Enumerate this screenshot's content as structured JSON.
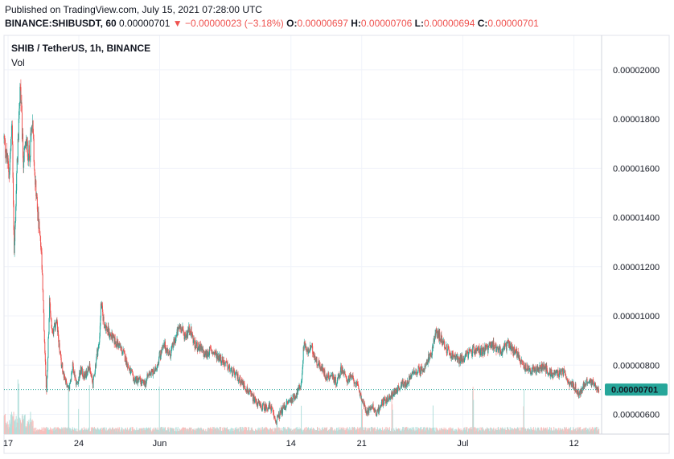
{
  "header": {
    "published": "Published on TradingView.com, July 15, 2021 07:28:00 UTC",
    "symbol": "BINANCE:SHIBUSDT, 60",
    "last": "0.00000701",
    "arrow": "▼",
    "change": "−0.00000023 (−3.18%)",
    "ohlc": [
      {
        "key": "O:",
        "value": "0.00000697"
      },
      {
        "key": "H:",
        "value": "0.00000706"
      },
      {
        "key": "L:",
        "value": "0.00000694"
      },
      {
        "key": "C:",
        "value": "0.00000701"
      }
    ]
  },
  "legend": {
    "title": "SHIB / TetherUS, 1h, BINANCE",
    "vol": "Vol"
  },
  "price_label": "0.00000701",
  "colors": {
    "up": "#26a69a",
    "down": "#ef5350",
    "vol_up": "#b2dfdb",
    "vol_down": "#f7bfbd",
    "grid": "#f0f3fa",
    "label_bg": "#26a69a"
  },
  "chart_data": {
    "type": "candlestick",
    "y_ticks": [
      "0.00002000",
      "0.00001800",
      "0.00001600",
      "0.00001400",
      "0.00001200",
      "0.00001000",
      "0.00000800",
      "0.00000600"
    ],
    "ylim": [
      5.2e-06,
      2.14e-05
    ],
    "x_ticks": [
      "17",
      "24",
      "Jun",
      "14",
      "21",
      "Jul",
      "12"
    ],
    "x_tick_days": [
      0,
      7,
      15,
      28,
      35,
      45,
      56
    ],
    "x_range_days": [
      -0.4,
      58.5
    ],
    "last_price": 7.01e-06,
    "close_path": [
      [
        -0.4,
        1.72
      ],
      [
        0.1,
        1.58
      ],
      [
        0.4,
        1.78
      ],
      [
        0.6,
        1.25
      ],
      [
        0.9,
        1.62
      ],
      [
        1.2,
        1.95
      ],
      [
        1.5,
        1.63
      ],
      [
        1.8,
        1.7
      ],
      [
        2.1,
        1.65
      ],
      [
        2.4,
        1.78
      ],
      [
        2.7,
        1.55
      ],
      [
        3.0,
        1.38
      ],
      [
        3.3,
        1.25
      ],
      [
        3.6,
        0.9
      ],
      [
        3.8,
        0.68
      ],
      [
        4.1,
        1.05
      ],
      [
        4.4,
        0.92
      ],
      [
        4.8,
        0.98
      ],
      [
        5.2,
        0.82
      ],
      [
        5.6,
        0.75
      ],
      [
        6.0,
        0.7
      ],
      [
        6.4,
        0.8
      ],
      [
        6.8,
        0.72
      ],
      [
        7.2,
        0.78
      ],
      [
        7.6,
        0.75
      ],
      [
        8.0,
        0.8
      ],
      [
        8.4,
        0.72
      ],
      [
        8.8,
        0.85
      ],
      [
        9.0,
        0.88
      ],
      [
        9.2,
        1.05
      ],
      [
        9.5,
        0.97
      ],
      [
        10.0,
        0.93
      ],
      [
        10.5,
        0.9
      ],
      [
        11.0,
        0.88
      ],
      [
        11.5,
        0.84
      ],
      [
        12.0,
        0.78
      ],
      [
        12.5,
        0.74
      ],
      [
        13.0,
        0.74
      ],
      [
        13.5,
        0.72
      ],
      [
        14.0,
        0.77
      ],
      [
        14.5,
        0.77
      ],
      [
        15.0,
        0.84
      ],
      [
        15.5,
        0.88
      ],
      [
        16.0,
        0.84
      ],
      [
        16.5,
        0.9
      ],
      [
        17.0,
        0.96
      ],
      [
        17.5,
        0.92
      ],
      [
        18.0,
        0.95
      ],
      [
        18.5,
        0.88
      ],
      [
        19.0,
        0.87
      ],
      [
        19.5,
        0.84
      ],
      [
        20.0,
        0.86
      ],
      [
        21.0,
        0.83
      ],
      [
        22.0,
        0.78
      ],
      [
        23.0,
        0.74
      ],
      [
        24.0,
        0.68
      ],
      [
        25.0,
        0.63
      ],
      [
        26.0,
        0.63
      ],
      [
        26.5,
        0.57
      ],
      [
        27.0,
        0.61
      ],
      [
        27.5,
        0.64
      ],
      [
        28.0,
        0.66
      ],
      [
        28.5,
        0.68
      ],
      [
        29.0,
        0.72
      ],
      [
        29.3,
        0.9
      ],
      [
        29.6,
        0.85
      ],
      [
        30.0,
        0.87
      ],
      [
        30.5,
        0.82
      ],
      [
        31.0,
        0.79
      ],
      [
        31.5,
        0.75
      ],
      [
        32.0,
        0.76
      ],
      [
        32.5,
        0.73
      ],
      [
        33.0,
        0.79
      ],
      [
        33.5,
        0.74
      ],
      [
        34.0,
        0.75
      ],
      [
        34.5,
        0.72
      ],
      [
        35.0,
        0.67
      ],
      [
        35.5,
        0.61
      ],
      [
        36.0,
        0.64
      ],
      [
        36.5,
        0.6
      ],
      [
        37.0,
        0.65
      ],
      [
        37.5,
        0.66
      ],
      [
        38.0,
        0.68
      ],
      [
        38.5,
        0.7
      ],
      [
        39.0,
        0.72
      ],
      [
        39.5,
        0.73
      ],
      [
        40.0,
        0.76
      ],
      [
        40.5,
        0.78
      ],
      [
        41.0,
        0.78
      ],
      [
        41.5,
        0.82
      ],
      [
        42.0,
        0.86
      ],
      [
        42.3,
        0.94
      ],
      [
        42.6,
        0.92
      ],
      [
        43.0,
        0.9
      ],
      [
        43.5,
        0.86
      ],
      [
        44.0,
        0.84
      ],
      [
        44.5,
        0.82
      ],
      [
        45.0,
        0.83
      ],
      [
        46.0,
        0.86
      ],
      [
        47.0,
        0.86
      ],
      [
        48.0,
        0.88
      ],
      [
        49.0,
        0.86
      ],
      [
        49.5,
        0.89
      ],
      [
        50.0,
        0.86
      ],
      [
        50.5,
        0.84
      ],
      [
        51.0,
        0.8
      ],
      [
        51.5,
        0.78
      ],
      [
        52.0,
        0.78
      ],
      [
        53.0,
        0.79
      ],
      [
        54.0,
        0.76
      ],
      [
        55.0,
        0.77
      ],
      [
        55.5,
        0.73
      ],
      [
        56.0,
        0.72
      ],
      [
        56.5,
        0.68
      ],
      [
        57.0,
        0.72
      ],
      [
        57.5,
        0.74
      ],
      [
        58.0,
        0.72
      ],
      [
        58.5,
        0.7
      ]
    ],
    "close_path_unit": "0.00001",
    "volume_spike_days": [
      1,
      6,
      7,
      8,
      15,
      29,
      35,
      38,
      42,
      46,
      51
    ]
  }
}
